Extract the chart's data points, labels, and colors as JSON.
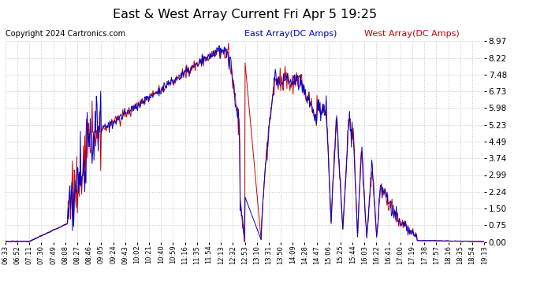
{
  "title": "East & West Array Current Fri Apr 5 19:25",
  "copyright": "Copyright 2024 Cartronics.com",
  "legend_east": "East Array(DC Amps)",
  "legend_west": "West Array(DC Amps)",
  "east_color": "#0000cc",
  "west_color": "#cc0000",
  "ymin": 0.0,
  "ymax": 8.97,
  "yticks": [
    0.0,
    0.75,
    1.5,
    2.24,
    2.99,
    3.74,
    4.49,
    5.23,
    5.98,
    6.73,
    7.48,
    8.22,
    8.97
  ],
  "background_color": "#ffffff",
  "plot_bg": "#ffffff",
  "grid_color": "#bbbbbb",
  "x_labels": [
    "06:33",
    "06:52",
    "07:11",
    "07:30",
    "07:49",
    "08:08",
    "08:27",
    "08:46",
    "09:05",
    "09:24",
    "09:43",
    "10:02",
    "10:21",
    "10:40",
    "10:59",
    "11:16",
    "11:35",
    "11:54",
    "12:13",
    "12:32",
    "12:53",
    "13:10",
    "13:31",
    "13:50",
    "14:09",
    "14:28",
    "14:47",
    "15:06",
    "15:25",
    "15:44",
    "16:03",
    "16:22",
    "16:41",
    "17:00",
    "17:19",
    "17:38",
    "17:57",
    "18:16",
    "18:35",
    "18:54",
    "19:13"
  ]
}
